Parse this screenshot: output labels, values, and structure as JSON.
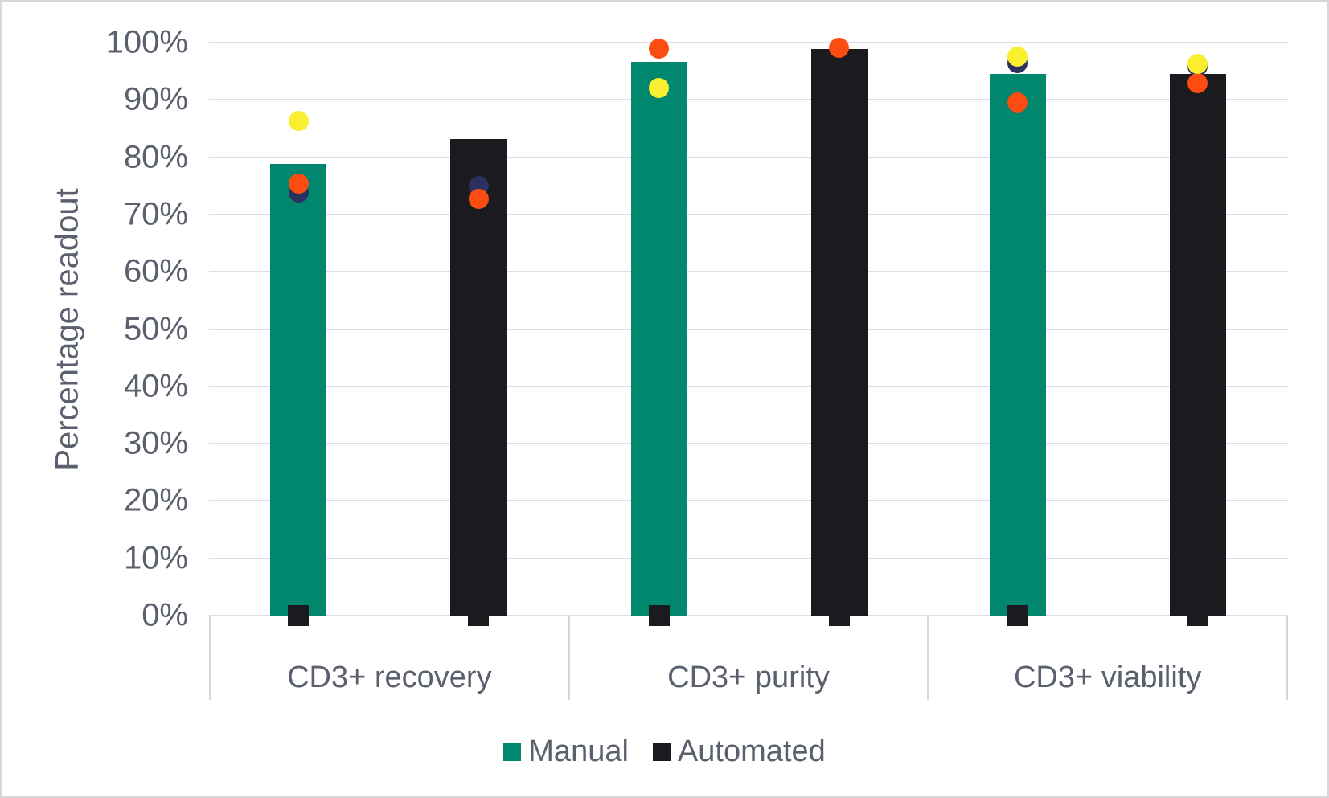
{
  "chart_data": {
    "type": "bar",
    "title": "",
    "ylabel": "Percentage readout",
    "xlabel": "",
    "ylim": [
      0,
      100
    ],
    "grid": true,
    "legend_position": "bottom",
    "ytick_labels": [
      "0%",
      "10%",
      "20%",
      "30%",
      "40%",
      "50%",
      "60%",
      "70%",
      "80%",
      "90%",
      "100%"
    ],
    "categories": [
      "CD3+ recovery",
      "CD3+ purity",
      "CD3+ viability"
    ],
    "series": [
      {
        "name": "Manual",
        "color": "#00876e",
        "values": [
          78.8,
          96.6,
          94.5
        ]
      },
      {
        "name": "Automated",
        "color": "#1a1a1f",
        "values": [
          83.2,
          98.9,
          94.5
        ]
      }
    ],
    "marker_colors": {
      "navy": "#2a3060",
      "orange": "#fb4d11",
      "yellow": "#f9ef2e"
    },
    "scatter_points": [
      {
        "category": "CD3+ recovery",
        "series": "Manual",
        "marker_color": "navy",
        "value": 73.8
      },
      {
        "category": "CD3+ recovery",
        "series": "Manual",
        "marker_color": "orange",
        "value": 75.4
      },
      {
        "category": "CD3+ recovery",
        "series": "Manual",
        "marker_color": "yellow",
        "value": 86.3
      },
      {
        "category": "CD3+ recovery",
        "series": "Automated",
        "marker_color": "navy",
        "value": 75.0
      },
      {
        "category": "CD3+ recovery",
        "series": "Automated",
        "marker_color": "orange",
        "value": 72.7
      },
      {
        "category": "CD3+ purity",
        "series": "Manual",
        "marker_color": "yellow",
        "value": 92.1
      },
      {
        "category": "CD3+ purity",
        "series": "Manual",
        "marker_color": "orange",
        "value": 99.0
      },
      {
        "category": "CD3+ purity",
        "series": "Automated",
        "marker_color": "orange",
        "value": 99.1
      },
      {
        "category": "CD3+ viability",
        "series": "Manual",
        "marker_color": "navy",
        "value": 96.4
      },
      {
        "category": "CD3+ viability",
        "series": "Manual",
        "marker_color": "orange",
        "value": 89.5
      },
      {
        "category": "CD3+ viability",
        "series": "Manual",
        "marker_color": "yellow",
        "value": 97.6
      },
      {
        "category": "CD3+ viability",
        "series": "Automated",
        "marker_color": "navy",
        "value": 95.8
      },
      {
        "category": "CD3+ viability",
        "series": "Automated",
        "marker_color": "orange",
        "value": 92.9
      },
      {
        "category": "CD3+ viability",
        "series": "Automated",
        "marker_color": "yellow",
        "value": 96.3
      }
    ],
    "zero_markers": {
      "shape": "square",
      "color": "#1a1a1f",
      "value": 0,
      "per_bar": true
    }
  }
}
